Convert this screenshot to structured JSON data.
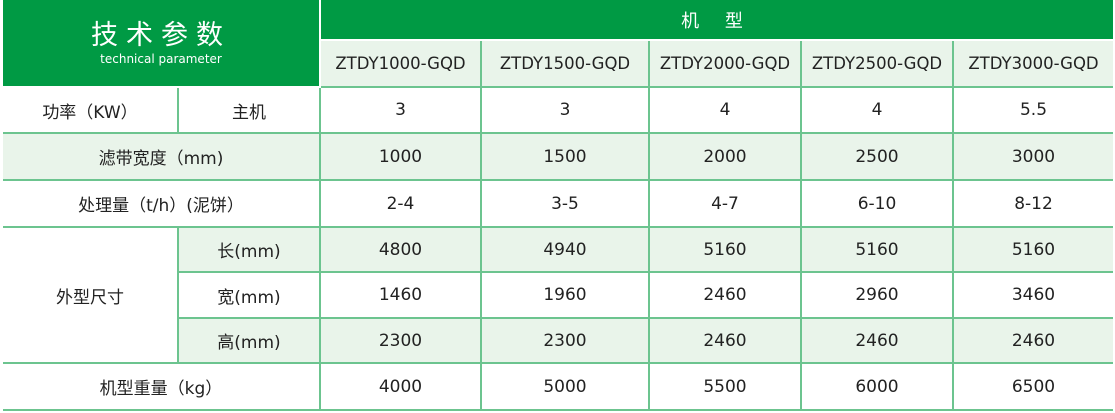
{
  "header": {
    "title": "技术参数",
    "subtitle": "technical parameter",
    "model_group_label": "机 型",
    "models": [
      "ZTDY1000-GQD",
      "ZTDY1500-GQD",
      "ZTDY2000-GQD",
      "ZTDY2500-GQD",
      "ZTDY3000-GQD"
    ]
  },
  "rows": {
    "power": {
      "label": "功率（KW）",
      "sublabel": "主机",
      "values": [
        "3",
        "3",
        "4",
        "4",
        "5.5"
      ]
    },
    "belt_width": {
      "label": "滤带宽度（mm)",
      "values": [
        "1000",
        "1500",
        "2000",
        "2500",
        "3000"
      ]
    },
    "capacity": {
      "label": "处理量（t/h）(泥饼）",
      "values": [
        "2-4",
        "3-5",
        "4-7",
        "6-10",
        "8-12"
      ]
    },
    "dimensions": {
      "label": "外型尺寸",
      "length": {
        "label": "长(mm)",
        "values": [
          "4800",
          "4940",
          "5160",
          "5160",
          "5160"
        ]
      },
      "width": {
        "label": "宽(mm)",
        "values": [
          "1460",
          "1960",
          "2460",
          "2960",
          "3460"
        ]
      },
      "height": {
        "label": "高(mm)",
        "values": [
          "2300",
          "2300",
          "2460",
          "2460",
          "2460"
        ]
      }
    },
    "weight": {
      "label": "机型重量（kg）",
      "values": [
        "4000",
        "5000",
        "5500",
        "6000",
        "6500"
      ]
    }
  },
  "colors": {
    "brand_green": "#009a44",
    "light_green": "#e9f4ea",
    "border_green": "#6cc48f"
  }
}
